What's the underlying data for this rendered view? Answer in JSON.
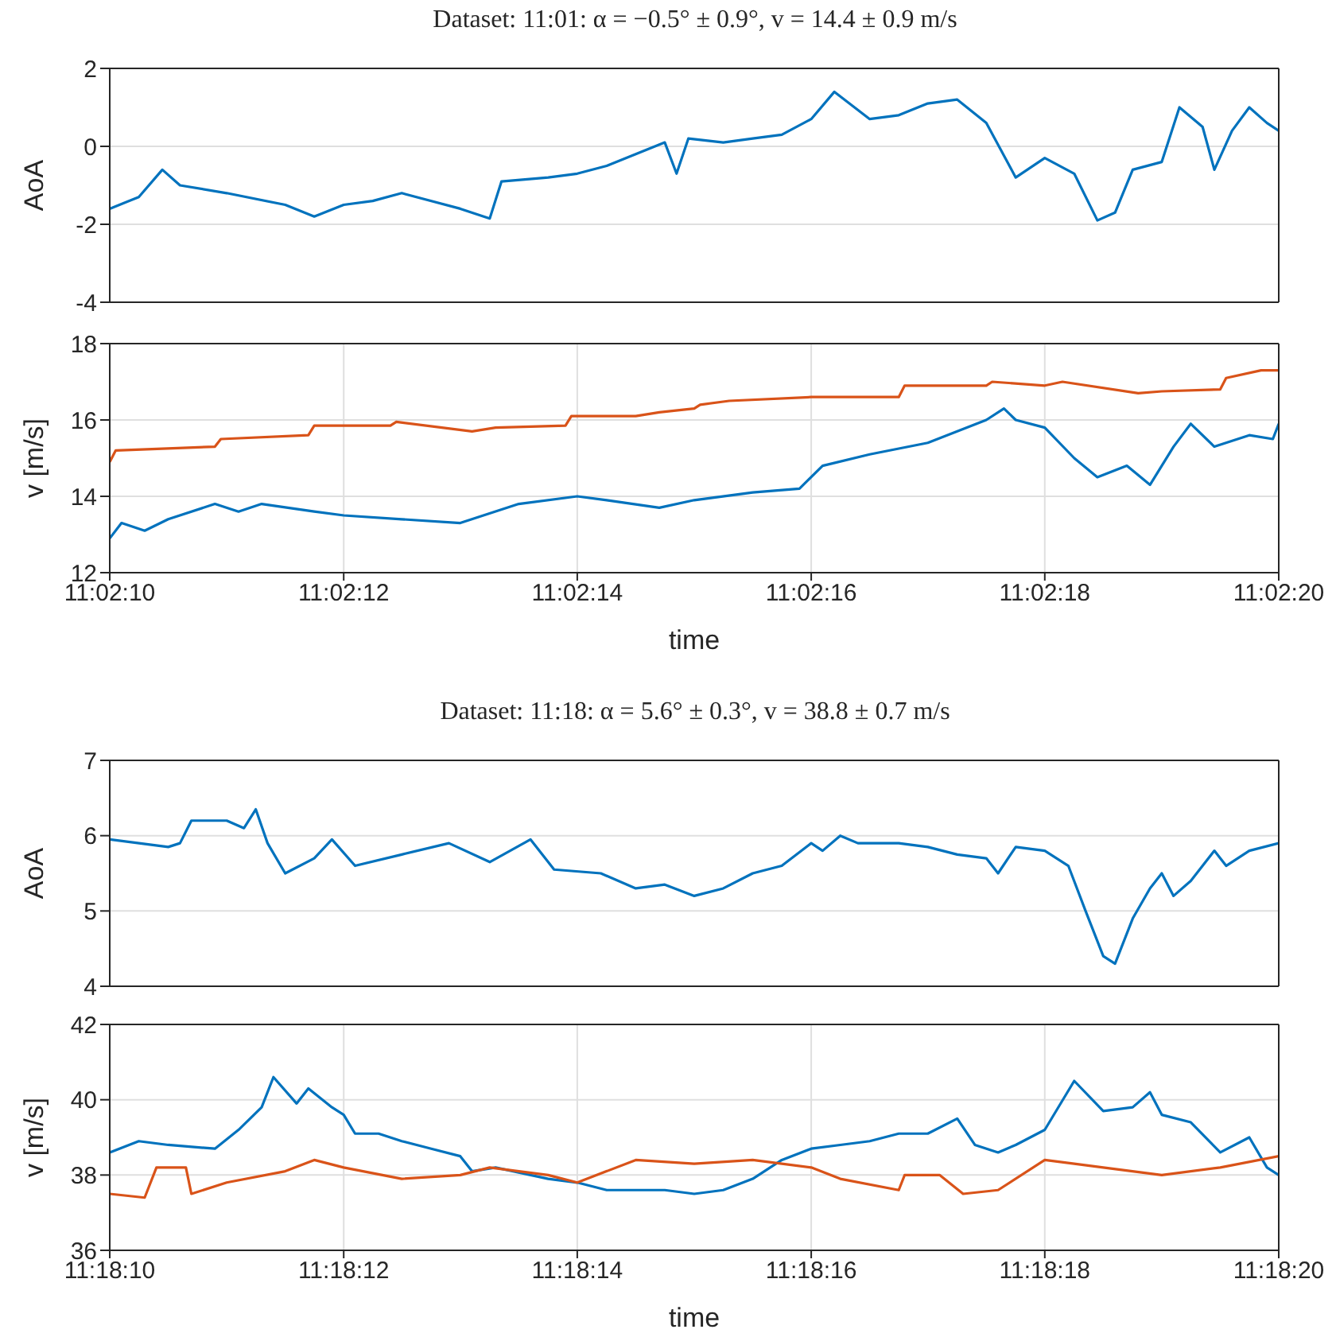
{
  "chart_data": [
    {
      "type": "line",
      "title": "Dataset: 11:01: α = −0.5° ± 0.9°, v = 14.4 ± 0.9 m/s",
      "ylabel": "AoA",
      "xlim": [
        11.036111,
        11.038889
      ],
      "xticks": [
        {
          "value": 11.036111,
          "label": null
        },
        {
          "value": 11.036667,
          "label": null
        },
        {
          "value": 11.037222,
          "label": null
        },
        {
          "value": 11.037778,
          "label": null
        },
        {
          "value": 11.038333,
          "label": null
        },
        {
          "value": 11.038889,
          "label": null
        }
      ],
      "ylim": [
        -4,
        2
      ],
      "yticks": [
        -4,
        -2,
        0,
        2
      ],
      "grid": true,
      "tick_labels": "y",
      "series": [
        {
          "color": "#0072bd",
          "x": [
            11.036111,
            11.03618,
            11.036236,
            11.036278,
            11.036389,
            11.036528,
            11.036597,
            11.036667,
            11.036736,
            11.036805,
            11.036944,
            11.037014,
            11.037042,
            11.037153,
            11.037222,
            11.037292,
            11.037361,
            11.03743,
            11.037458,
            11.037486,
            11.037569,
            11.037639,
            11.037708,
            11.037778,
            11.037833,
            11.037917,
            11.037986,
            11.038055,
            11.038125,
            11.038194,
            11.038264,
            11.038333,
            11.038403,
            11.038458,
            11.0385,
            11.038542,
            11.038611,
            11.038653,
            11.038708,
            11.038736,
            11.038778,
            11.038819,
            11.038861,
            11.038889
          ],
          "values": [
            -1.6,
            -1.3,
            -0.6,
            -1,
            -1.2,
            -1.5,
            -1.8,
            -1.5,
            -1.4,
            -1.2,
            -1.6,
            -1.85,
            -0.9,
            -0.8,
            -0.7,
            -0.5,
            -0.2,
            0.1,
            -0.7,
            0.2,
            0.1,
            0.2,
            0.3,
            0.7,
            1.4,
            0.7,
            0.8,
            1.1,
            1.2,
            0.6,
            -0.8,
            -0.3,
            -0.7,
            -1.9,
            -1.7,
            -0.6,
            -0.4,
            1,
            0.5,
            -0.6,
            0.4,
            1,
            0.6,
            0.4
          ]
        }
      ]
    },
    {
      "type": "line",
      "xlabel": "time",
      "ylabel": "v [m/s]",
      "xlim": [
        11.036111,
        11.038889
      ],
      "xticks": [
        {
          "value": 11.036111,
          "label": "11:02:10"
        },
        {
          "value": 11.036667,
          "label": "11:02:12"
        },
        {
          "value": 11.037222,
          "label": "11:02:14"
        },
        {
          "value": 11.037778,
          "label": "11:02:16"
        },
        {
          "value": 11.038333,
          "label": "11:02:18"
        },
        {
          "value": 11.038889,
          "label": "11:02:20"
        }
      ],
      "ylim": [
        12,
        18
      ],
      "yticks": [
        12,
        14,
        16,
        18
      ],
      "grid": true,
      "series": [
        {
          "color": "#d95319",
          "x": [
            11.036111,
            11.036125,
            11.036361,
            11.036375,
            11.036583,
            11.036597,
            11.036778,
            11.036792,
            11.036972,
            11.037028,
            11.037194,
            11.037208,
            11.037361,
            11.037417,
            11.0375,
            11.037514,
            11.037583,
            11.037778,
            11.037986,
            11.038,
            11.038194,
            11.038208,
            11.038333,
            11.038375,
            11.038555,
            11.038611,
            11.03875,
            11.038764,
            11.038847,
            11.038889
          ],
          "values": [
            14.9,
            15.2,
            15.3,
            15.5,
            15.6,
            15.85,
            15.85,
            15.95,
            15.7,
            15.8,
            15.85,
            16.1,
            16.1,
            16.2,
            16.3,
            16.4,
            16.5,
            16.6,
            16.6,
            16.9,
            16.9,
            17,
            16.9,
            17,
            16.7,
            16.75,
            16.8,
            17.1,
            17.3,
            17.3
          ]
        },
        {
          "color": "#0072bd",
          "x": [
            11.036111,
            11.036139,
            11.036194,
            11.03625,
            11.036361,
            11.036417,
            11.036472,
            11.036597,
            11.036667,
            11.036805,
            11.036944,
            11.037083,
            11.037222,
            11.037292,
            11.037417,
            11.0375,
            11.037639,
            11.03775,
            11.037805,
            11.037917,
            11.038055,
            11.038194,
            11.038236,
            11.038264,
            11.038333,
            11.038403,
            11.038458,
            11.038528,
            11.038583,
            11.038639,
            11.03868,
            11.038736,
            11.038819,
            11.038875,
            11.038889
          ],
          "values": [
            12.9,
            13.3,
            13.1,
            13.4,
            13.8,
            13.6,
            13.8,
            13.6,
            13.5,
            13.4,
            13.3,
            13.8,
            14,
            13.9,
            13.7,
            13.9,
            14.1,
            14.2,
            14.8,
            15.1,
            15.4,
            16,
            16.3,
            16,
            15.8,
            15,
            14.5,
            14.8,
            14.3,
            15.3,
            15.9,
            15.3,
            15.6,
            15.5,
            15.9
          ]
        }
      ]
    },
    {
      "type": "line",
      "title": "Dataset: 11:18: α = 5.6° ± 0.3°, v = 38.8 ± 0.7 m/s",
      "ylabel": "AoA",
      "xlim": [
        11.302778,
        11.305556
      ],
      "xticks": [
        {
          "value": 11.302778,
          "label": null
        },
        {
          "value": 11.303334,
          "label": null
        },
        {
          "value": 11.303889,
          "label": null
        },
        {
          "value": 11.304445,
          "label": null
        },
        {
          "value": 11.305,
          "label": null
        },
        {
          "value": 11.305556,
          "label": null
        }
      ],
      "ylim": [
        4,
        7
      ],
      "yticks": [
        4,
        5,
        6,
        7
      ],
      "grid": true,
      "tick_labels": "y",
      "series": [
        {
          "color": "#0072bd",
          "x": [
            11.302778,
            11.302917,
            11.302945,
            11.302972,
            11.303056,
            11.303097,
            11.303125,
            11.303153,
            11.303195,
            11.303264,
            11.303306,
            11.303361,
            11.303472,
            11.303584,
            11.303681,
            11.303778,
            11.303834,
            11.303945,
            11.304028,
            11.304097,
            11.304167,
            11.304236,
            11.304306,
            11.304375,
            11.304445,
            11.304472,
            11.304514,
            11.304556,
            11.304653,
            11.304722,
            11.304792,
            11.304861,
            11.304889,
            11.304931,
            11.305,
            11.305056,
            11.305097,
            11.305139,
            11.305167,
            11.305209,
            11.30525,
            11.305278,
            11.305306,
            11.305347,
            11.305403,
            11.305431,
            11.305486,
            11.305556
          ],
          "values": [
            5.95,
            5.85,
            5.9,
            6.2,
            6.2,
            6.1,
            6.35,
            5.9,
            5.5,
            5.7,
            5.95,
            5.6,
            5.75,
            5.9,
            5.65,
            5.95,
            5.55,
            5.5,
            5.3,
            5.35,
            5.2,
            5.3,
            5.5,
            5.6,
            5.9,
            5.8,
            6,
            5.9,
            5.9,
            5.85,
            5.75,
            5.7,
            5.5,
            5.85,
            5.8,
            5.6,
            5,
            4.4,
            4.3,
            4.9,
            5.3,
            5.5,
            5.2,
            5.4,
            5.8,
            5.6,
            5.8,
            5.9
          ]
        }
      ]
    },
    {
      "type": "line",
      "xlabel": "time",
      "ylabel": "v [m/s]",
      "xlim": [
        11.302778,
        11.305556
      ],
      "xticks": [
        {
          "value": 11.302778,
          "label": "11:18:10"
        },
        {
          "value": 11.303334,
          "label": "11:18:12"
        },
        {
          "value": 11.303889,
          "label": "11:18:14"
        },
        {
          "value": 11.304445,
          "label": "11:18:16"
        },
        {
          "value": 11.305,
          "label": "11:18:18"
        },
        {
          "value": 11.305556,
          "label": "11:18:20"
        }
      ],
      "ylim": [
        36,
        42
      ],
      "yticks": [
        36,
        38,
        40,
        42
      ],
      "grid": true,
      "series": [
        {
          "color": "#0072bd",
          "x": [
            11.302778,
            11.302847,
            11.302917,
            11.303028,
            11.303084,
            11.303139,
            11.303167,
            11.303222,
            11.30325,
            11.303306,
            11.303334,
            11.303361,
            11.303417,
            11.303472,
            11.303542,
            11.303611,
            11.303639,
            11.303695,
            11.30382,
            11.303889,
            11.303959,
            11.304097,
            11.304167,
            11.304236,
            11.304306,
            11.304375,
            11.304445,
            11.304514,
            11.304584,
            11.304653,
            11.304722,
            11.304792,
            11.304834,
            11.304889,
            11.304931,
            11.305,
            11.30507,
            11.305139,
            11.305209,
            11.30525,
            11.305278,
            11.305347,
            11.305417,
            11.305486,
            11.305528,
            11.305556
          ],
          "values": [
            38.6,
            38.9,
            38.8,
            38.7,
            39.2,
            39.8,
            40.6,
            39.9,
            40.3,
            39.8,
            39.6,
            39.1,
            39.1,
            38.9,
            38.7,
            38.5,
            38.1,
            38.2,
            37.9,
            37.8,
            37.6,
            37.6,
            37.5,
            37.6,
            37.9,
            38.4,
            38.7,
            38.8,
            38.9,
            39.1,
            39.1,
            39.5,
            38.8,
            38.6,
            38.8,
            39.2,
            40.5,
            39.7,
            39.8,
            40.2,
            39.6,
            39.4,
            38.6,
            39,
            38.2,
            38
          ]
        },
        {
          "color": "#d95319",
          "x": [
            11.302778,
            11.302861,
            11.302889,
            11.302959,
            11.302972,
            11.303056,
            11.303195,
            11.303264,
            11.303334,
            11.303472,
            11.303611,
            11.303681,
            11.30382,
            11.303889,
            11.304028,
            11.304167,
            11.304306,
            11.304445,
            11.304514,
            11.304653,
            11.304667,
            11.30475,
            11.304806,
            11.304889,
            11.305,
            11.30507,
            11.305139,
            11.305278,
            11.305417,
            11.305556
          ],
          "values": [
            37.5,
            37.4,
            38.2,
            38.2,
            37.5,
            37.8,
            38.1,
            38.4,
            38.2,
            37.9,
            38,
            38.2,
            38,
            37.8,
            38.4,
            38.3,
            38.4,
            38.2,
            37.9,
            37.6,
            38,
            38,
            37.5,
            37.6,
            38.4,
            38.3,
            38.2,
            38,
            38.2,
            38.5
          ]
        }
      ]
    }
  ]
}
